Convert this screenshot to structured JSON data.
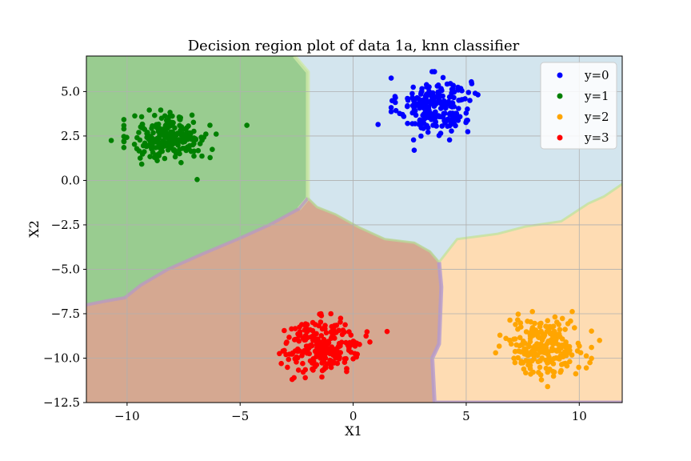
{
  "chart_data": {
    "type": "scatter",
    "title": "Decision region plot of data 1a, knn classifier",
    "xlabel": "X1",
    "ylabel": "X2",
    "xlim": [
      -11.8,
      11.9
    ],
    "ylim": [
      -12.5,
      7.0
    ],
    "xticks": [
      -10,
      -5,
      0,
      5,
      10
    ],
    "xtick_labels": [
      "−10",
      "−5",
      "0",
      "5",
      "10"
    ],
    "yticks": [
      5.0,
      2.5,
      0.0,
      -2.5,
      -5.0,
      -7.5,
      -10.0,
      -12.5
    ],
    "ytick_labels": [
      "5.0",
      "2.5",
      "0.0",
      "−2.5",
      "−5.0",
      "−7.5",
      "−10.0",
      "−12.5"
    ],
    "grid": true,
    "legend_position": "top-right",
    "series": [
      {
        "name": "y=0",
        "color": "#0000ff",
        "region_color": "#d3e5ee",
        "center": [
          3.6,
          4.2
        ],
        "spread": [
          0.8,
          0.8
        ],
        "count": 230
      },
      {
        "name": "y=1",
        "color": "#008000",
        "region_color": "#99cc90",
        "center": [
          -8.1,
          2.4
        ],
        "spread": [
          0.85,
          0.65
        ],
        "count": 230
      },
      {
        "name": "y=2",
        "color": "#ffa500",
        "region_color": "#fedcb3",
        "center": [
          8.5,
          -9.3
        ],
        "spread": [
          0.85,
          0.8
        ],
        "count": 230
      },
      {
        "name": "y=3",
        "color": "#ff0000",
        "region_color": "#d5a891",
        "center": [
          -1.3,
          -9.3
        ],
        "spread": [
          0.85,
          0.75
        ],
        "count": 230
      }
    ],
    "outliers": [
      {
        "series": "y=1",
        "x": -10.7,
        "y": 2.25
      },
      {
        "series": "y=1",
        "x": -4.7,
        "y": 3.1
      },
      {
        "series": "y=1",
        "x": -6.9,
        "y": 0.05
      },
      {
        "series": "y=0",
        "x": 1.1,
        "y": 3.15
      },
      {
        "series": "y=0",
        "x": 2.7,
        "y": 1.7
      },
      {
        "series": "y=0",
        "x": 5.4,
        "y": 4.9
      },
      {
        "series": "y=3",
        "x": 1.5,
        "y": -8.5
      },
      {
        "series": "y=3",
        "x": -3.1,
        "y": -9.6
      },
      {
        "series": "y=3",
        "x": -2.7,
        "y": -11.2
      },
      {
        "series": "y=2",
        "x": 10.9,
        "y": -9.0
      },
      {
        "series": "y=2",
        "x": 6.3,
        "y": -9.7
      },
      {
        "series": "y=2",
        "x": 8.6,
        "y": -11.6
      }
    ],
    "boundaries": {
      "region_y1_polygon": [
        [
          -11.8,
          7.0
        ],
        [
          -2.6,
          7.0
        ],
        [
          -2.0,
          6.1
        ],
        [
          -2.0,
          -1.0
        ],
        [
          -2.4,
          -1.6
        ],
        [
          -3.7,
          -2.5
        ],
        [
          -5.1,
          -3.3
        ],
        [
          -6.6,
          -4.1
        ],
        [
          -8.2,
          -5.0
        ],
        [
          -9.4,
          -5.9
        ],
        [
          -10.1,
          -6.6
        ],
        [
          -11.0,
          -6.8
        ],
        [
          -11.8,
          -7.0
        ]
      ],
      "region_y3_polygon": [
        [
          -11.8,
          -7.0
        ],
        [
          -11.0,
          -6.8
        ],
        [
          -10.1,
          -6.6
        ],
        [
          -9.4,
          -5.9
        ],
        [
          -8.2,
          -5.0
        ],
        [
          -6.6,
          -4.1
        ],
        [
          -5.1,
          -3.3
        ],
        [
          -3.7,
          -2.5
        ],
        [
          -2.4,
          -1.6
        ],
        [
          -2.0,
          -1.0
        ],
        [
          -1.6,
          -1.5
        ],
        [
          -0.8,
          -1.9
        ],
        [
          0.2,
          -2.6
        ],
        [
          1.4,
          -3.3
        ],
        [
          2.7,
          -3.5
        ],
        [
          3.4,
          -4.0
        ],
        [
          3.8,
          -4.6
        ],
        [
          3.9,
          -6.0
        ],
        [
          3.8,
          -9.2
        ],
        [
          3.5,
          -10.0
        ],
        [
          3.6,
          -12.5
        ],
        [
          -11.8,
          -12.5
        ]
      ],
      "region_y2_polygon": [
        [
          3.8,
          -4.6
        ],
        [
          4.6,
          -3.3
        ],
        [
          6.4,
          -3.0
        ],
        [
          7.6,
          -2.6
        ],
        [
          9.2,
          -2.3
        ],
        [
          10.4,
          -1.3
        ],
        [
          11.1,
          -0.9
        ],
        [
          11.9,
          -0.2
        ],
        [
          11.9,
          -12.5
        ],
        [
          3.6,
          -12.5
        ],
        [
          3.5,
          -10.0
        ],
        [
          3.8,
          -9.2
        ],
        [
          3.9,
          -6.0
        ]
      ]
    }
  }
}
